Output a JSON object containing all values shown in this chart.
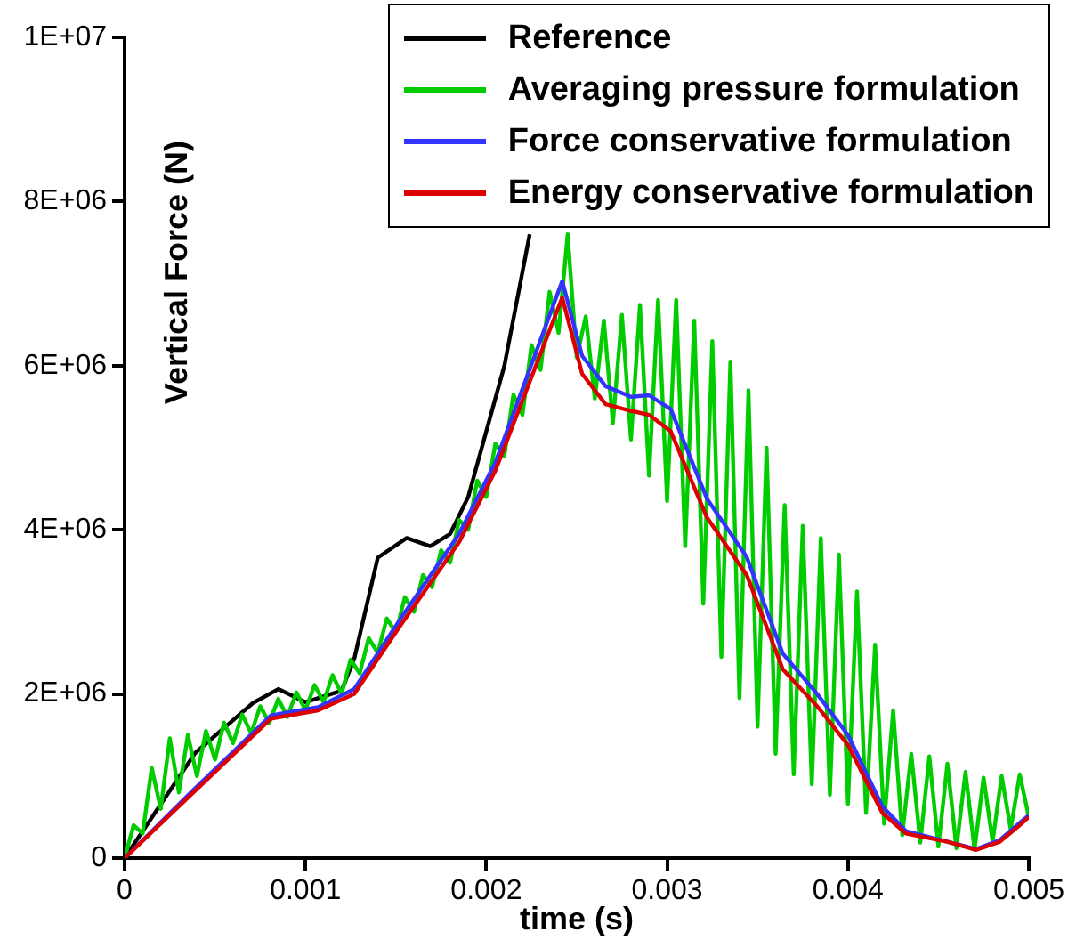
{
  "chart_data": {
    "type": "line",
    "xlabel": "time (s)",
    "ylabel": "Vertical Force (N)",
    "xlim": [
      0,
      0.005
    ],
    "xticks": [
      0,
      0.001,
      0.002,
      0.003,
      0.004,
      0.005
    ],
    "ylim": [
      0,
      10000000
    ],
    "yticks": [
      {
        "value": 0,
        "label": "0"
      },
      {
        "value": 2000000,
        "label": "2E+06"
      },
      {
        "value": 4000000,
        "label": "4E+06"
      },
      {
        "value": 6000000,
        "label": "6E+06"
      },
      {
        "value": 8000000,
        "label": "8E+06"
      },
      {
        "value": 10000000,
        "label": "1E+07"
      }
    ],
    "legend": "top right",
    "grid": false,
    "marker": "none",
    "line_style": "solid",
    "series": [
      {
        "name": "Reference",
        "color": "#000000",
        "x": [
          0,
          0.00039,
          0.00071,
          0.00085,
          0.001,
          0.0012,
          0.00127,
          0.0014,
          0.00156,
          0.00169,
          0.0018,
          0.0019,
          0.0021,
          0.00224
        ],
        "values": [
          0,
          1280000,
          1890000,
          2060000,
          1900000,
          2040000,
          2430000,
          3660000,
          3900000,
          3800000,
          3950000,
          4400000,
          6000000,
          7600000
        ]
      },
      {
        "name": "Averaging pressure formulation",
        "color": "#00cc00",
        "x": [
          0,
          5e-05,
          0.0001,
          0.00015,
          0.0002,
          0.00025,
          0.0003,
          0.00035,
          0.0004,
          0.00045,
          0.0005,
          0.00055,
          0.0006,
          0.00065,
          0.0007,
          0.00075,
          0.0008,
          0.00085,
          0.0009,
          0.00095,
          0.001,
          0.00105,
          0.0011,
          0.00115,
          0.0012,
          0.00125,
          0.0013,
          0.00135,
          0.0014,
          0.00145,
          0.0015,
          0.00155,
          0.0016,
          0.00165,
          0.0017,
          0.00175,
          0.0018,
          0.00185,
          0.0019,
          0.00195,
          0.002,
          0.00205,
          0.0021,
          0.00215,
          0.0022,
          0.00225,
          0.0023,
          0.00235,
          0.0024,
          0.00245,
          0.0025,
          0.00255,
          0.0026,
          0.00265,
          0.0027,
          0.00275,
          0.0028,
          0.00285,
          0.0029,
          0.00295,
          0.003,
          0.00305,
          0.0031,
          0.00315,
          0.0032,
          0.00325,
          0.0033,
          0.00335,
          0.0034,
          0.00345,
          0.0035,
          0.00355,
          0.0036,
          0.00365,
          0.0037,
          0.00375,
          0.0038,
          0.00385,
          0.0039,
          0.00395,
          0.004,
          0.00405,
          0.0041,
          0.00415,
          0.0042,
          0.00425,
          0.0043,
          0.00435,
          0.0044,
          0.00445,
          0.0045,
          0.00455,
          0.0046,
          0.00465,
          0.0047,
          0.00475,
          0.0048,
          0.00485,
          0.0049,
          0.00495,
          0.005
        ],
        "values": [
          0,
          400000,
          300000,
          1100000,
          600000,
          1460000,
          800000,
          1500000,
          1000000,
          1550000,
          1200000,
          1650000,
          1400000,
          1750000,
          1520000,
          1850000,
          1650000,
          1940000,
          1720000,
          2020000,
          1800000,
          2110000,
          1900000,
          2230000,
          2000000,
          2420000,
          2250000,
          2680000,
          2500000,
          2920000,
          2750000,
          3180000,
          3000000,
          3450000,
          3300000,
          3750000,
          3600000,
          4120000,
          4000000,
          4600000,
          4400000,
          5050000,
          4900000,
          5650000,
          5400000,
          6250000,
          5950000,
          6900000,
          6400000,
          7600000,
          6100000,
          6600000,
          5600000,
          6550000,
          5300000,
          6620000,
          5100000,
          6740000,
          4660000,
          6800000,
          4350000,
          6800000,
          3800000,
          6550000,
          3100000,
          6300000,
          2450000,
          6050000,
          1950000,
          5700000,
          1600000,
          5000000,
          1270000,
          4300000,
          1020000,
          4050000,
          900000,
          3900000,
          770000,
          3700000,
          660000,
          3250000,
          550000,
          2600000,
          420000,
          1800000,
          280000,
          1270000,
          190000,
          1240000,
          140000,
          1150000,
          120000,
          1050000,
          100000,
          980000,
          200000,
          1000000,
          350000,
          1020000,
          500000
        ]
      },
      {
        "name": "Force conservative formulation",
        "color": "#3333ff",
        "x": [
          0,
          0.00039,
          0.00081,
          0.00107,
          0.00127,
          0.00153,
          0.00185,
          0.00205,
          0.00242,
          0.00253,
          0.00266,
          0.0028,
          0.0029,
          0.00302,
          0.00322,
          0.00344,
          0.00364,
          0.00383,
          0.004,
          0.00419,
          0.00432,
          0.00455,
          0.00471,
          0.00484,
          0.00495,
          0.005
        ],
        "values": [
          0,
          850000,
          1740000,
          1840000,
          2060000,
          2930000,
          3950000,
          4820000,
          7030000,
          6120000,
          5750000,
          5620000,
          5640000,
          5470000,
          4380000,
          3670000,
          2490000,
          2000000,
          1500000,
          630000,
          330000,
          200000,
          110000,
          220000,
          430000,
          520000
        ]
      },
      {
        "name": "Energy conservative formulation",
        "color": "#dd0000",
        "x": [
          0,
          0.00039,
          0.00081,
          0.00107,
          0.00127,
          0.00153,
          0.00185,
          0.00205,
          0.00242,
          0.00253,
          0.00266,
          0.0028,
          0.0029,
          0.00302,
          0.00322,
          0.00344,
          0.00364,
          0.00383,
          0.004,
          0.00419,
          0.00432,
          0.00455,
          0.00471,
          0.00484,
          0.00495,
          0.005
        ],
        "values": [
          0,
          820000,
          1700000,
          1800000,
          2000000,
          2850000,
          3850000,
          4720000,
          6830000,
          5900000,
          5530000,
          5450000,
          5400000,
          5200000,
          4150000,
          3450000,
          2300000,
          1850000,
          1380000,
          550000,
          300000,
          200000,
          100000,
          200000,
          400000,
          500000
        ]
      }
    ]
  }
}
